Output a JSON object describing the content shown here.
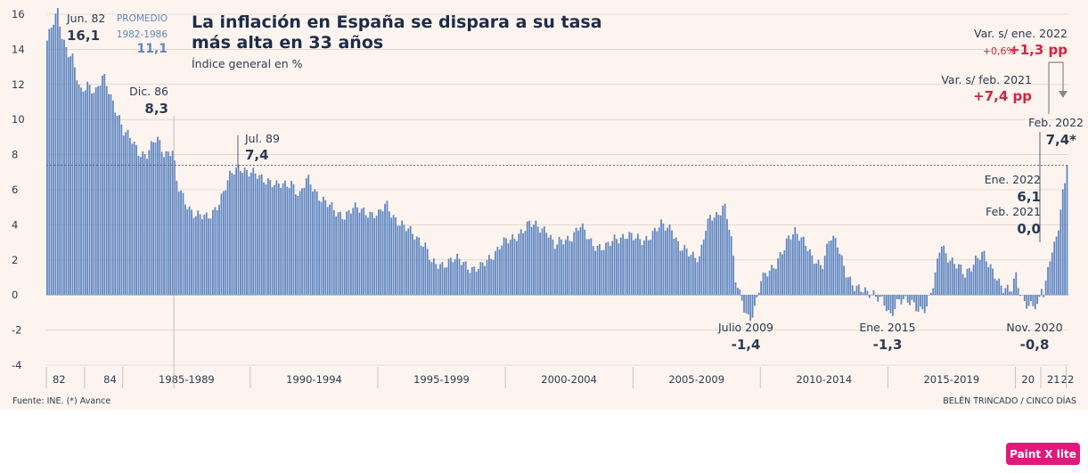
{
  "colors": {
    "background": "#fdf4ef",
    "bar": "#5f86c2",
    "bar_dark": "#3e6bb1",
    "text": "#2b3a52",
    "red": "#d8223f",
    "gridline": "#d6c9c2"
  },
  "chart_data": {
    "type": "bar",
    "title_lines": [
      "La inflación en España se dispara a su tasa",
      "más alta en 33 años"
    ],
    "subtitle": "Índice general en %",
    "ylim": [
      -4,
      16
    ],
    "yticks": [
      16,
      14,
      12,
      10,
      8,
      6,
      4,
      2,
      0,
      -2,
      -4
    ],
    "start_year": 1982,
    "end_label": "Feb. 2022",
    "period_labels": [
      "82",
      "84",
      "1985-1989",
      "1990-1994",
      "1995-1999",
      "2000-2004",
      "2005-2009",
      "2010-2014",
      "2015-2019",
      "20",
      "21",
      "22"
    ],
    "reference_line": 7.4,
    "annotations": {
      "jun82": {
        "label": "Jun. 82",
        "value": "16,1"
      },
      "promedio": {
        "label": "PROMEDIO",
        "period": "1982-1986",
        "value": "11,1"
      },
      "dic86": {
        "label": "Dic. 86",
        "value": "8,3"
      },
      "jul89": {
        "label": "Jul. 89",
        "value": "7,4"
      },
      "julio2009": {
        "label": "Julio 2009",
        "value": "-1,4"
      },
      "ene2015": {
        "label": "Ene. 2015",
        "value": "-1,3"
      },
      "nov2020": {
        "label": "Nov. 2020",
        "value": "-0,8"
      },
      "feb2021": {
        "label": "Feb. 2021",
        "value": "0,0"
      },
      "ene2022": {
        "label": "Ene. 2022",
        "value": "6,1"
      },
      "feb2022": {
        "label": "Feb. 2022",
        "value": "7,4*"
      },
      "var_ene": {
        "label": "Var. s/ ene. 2022",
        "pct": "+0,6%",
        "pp": "+1,3 pp"
      },
      "var_feb": {
        "label": "Var. s/ feb. 2021",
        "pp": "+7,4 pp"
      }
    },
    "keypoints": [
      [
        1982.0,
        14.5
      ],
      [
        1982.2,
        15.3
      ],
      [
        1982.42,
        16.1
      ],
      [
        1982.6,
        14.7
      ],
      [
        1982.8,
        14.0
      ],
      [
        1983.0,
        13.5
      ],
      [
        1983.3,
        11.4
      ],
      [
        1983.6,
        12.1
      ],
      [
        1983.9,
        11.6
      ],
      [
        1984.2,
        12.4
      ],
      [
        1984.5,
        11.3
      ],
      [
        1984.8,
        10.3
      ],
      [
        1985.0,
        9.3
      ],
      [
        1985.3,
        8.8
      ],
      [
        1985.6,
        8.2
      ],
      [
        1985.9,
        8.0
      ],
      [
        1986.3,
        8.9
      ],
      [
        1986.6,
        8.1
      ],
      [
        1986.92,
        8.3
      ],
      [
        1987.1,
        6.2
      ],
      [
        1987.4,
        5.3
      ],
      [
        1987.7,
        4.8
      ],
      [
        1988.0,
        4.5
      ],
      [
        1988.3,
        4.3
      ],
      [
        1988.6,
        5.0
      ],
      [
        1988.9,
        5.8
      ],
      [
        1989.2,
        6.8
      ],
      [
        1989.55,
        7.4
      ],
      [
        1989.9,
        7.0
      ],
      [
        1990.3,
        6.7
      ],
      [
        1990.7,
        6.6
      ],
      [
        1991.0,
        6.2
      ],
      [
        1991.3,
        6.2
      ],
      [
        1991.6,
        6.5
      ],
      [
        1991.9,
        5.6
      ],
      [
        1992.2,
        6.6
      ],
      [
        1992.5,
        6.0
      ],
      [
        1992.9,
        5.3
      ],
      [
        1993.3,
        4.7
      ],
      [
        1993.7,
        4.6
      ],
      [
        1994.0,
        4.9
      ],
      [
        1994.5,
        4.8
      ],
      [
        1995.0,
        4.5
      ],
      [
        1995.3,
        5.2
      ],
      [
        1995.7,
        4.3
      ],
      [
        1996.0,
        3.8
      ],
      [
        1996.4,
        3.5
      ],
      [
        1996.8,
        2.9
      ],
      [
        1997.1,
        1.7
      ],
      [
        1997.5,
        1.8
      ],
      [
        1997.9,
        2.0
      ],
      [
        1998.3,
        1.9
      ],
      [
        1998.7,
        1.5
      ],
      [
        1999.0,
        1.5
      ],
      [
        1999.4,
        2.2
      ],
      [
        1999.8,
        2.9
      ],
      [
        2000.2,
        3.1
      ],
      [
        2000.6,
        3.7
      ],
      [
        2000.9,
        4.0
      ],
      [
        2001.2,
        3.9
      ],
      [
        2001.6,
        3.8
      ],
      [
        2001.9,
        2.7
      ],
      [
        2002.2,
        3.1
      ],
      [
        2002.6,
        3.4
      ],
      [
        2002.9,
        3.9
      ],
      [
        2003.3,
        3.1
      ],
      [
        2003.6,
        2.8
      ],
      [
        2003.9,
        2.6
      ],
      [
        2004.3,
        3.3
      ],
      [
        2004.7,
        3.4
      ],
      [
        2005.0,
        3.2
      ],
      [
        2005.4,
        3.2
      ],
      [
        2005.8,
        3.5
      ],
      [
        2006.1,
        4.0
      ],
      [
        2006.5,
        3.9
      ],
      [
        2006.8,
        2.6
      ],
      [
        2007.2,
        2.4
      ],
      [
        2007.6,
        2.2
      ],
      [
        2007.8,
        3.6
      ],
      [
        2008.0,
        4.3
      ],
      [
        2008.3,
        4.6
      ],
      [
        2008.55,
        5.3
      ],
      [
        2008.8,
        3.5
      ],
      [
        2009.0,
        0.8
      ],
      [
        2009.3,
        -0.5
      ],
      [
        2009.55,
        -1.4
      ],
      [
        2009.8,
        -0.7
      ],
      [
        2010.0,
        0.8
      ],
      [
        2010.3,
        1.5
      ],
      [
        2010.6,
        1.8
      ],
      [
        2010.9,
        2.5
      ],
      [
        2011.1,
        3.3
      ],
      [
        2011.35,
        3.8
      ],
      [
        2011.7,
        3.0
      ],
      [
        2012.0,
        2.0
      ],
      [
        2012.4,
        1.8
      ],
      [
        2012.7,
        3.3
      ],
      [
        2013.0,
        2.8
      ],
      [
        2013.3,
        1.5
      ],
      [
        2013.7,
        0.3
      ],
      [
        2014.0,
        0.2
      ],
      [
        2014.4,
        0.2
      ],
      [
        2014.8,
        -0.5
      ],
      [
        2015.05,
        -1.3
      ],
      [
        2015.4,
        -0.1
      ],
      [
        2015.8,
        -0.5
      ],
      [
        2016.2,
        -0.8
      ],
      [
        2016.5,
        -0.6
      ],
      [
        2016.8,
        0.7
      ],
      [
        2017.05,
        3.0
      ],
      [
        2017.3,
        2.3
      ],
      [
        2017.7,
        1.6
      ],
      [
        2018.0,
        1.1
      ],
      [
        2018.4,
        2.1
      ],
      [
        2018.7,
        2.3
      ],
      [
        2018.9,
        1.7
      ],
      [
        2019.2,
        1.2
      ],
      [
        2019.5,
        0.4
      ],
      [
        2019.8,
        0.1
      ],
      [
        2020.0,
        1.1
      ],
      [
        2020.2,
        0.0
      ],
      [
        2020.5,
        -0.6
      ],
      [
        2020.88,
        -0.8
      ],
      [
        2021.0,
        0.5
      ],
      [
        2021.1,
        0.0
      ],
      [
        2021.3,
        2.2
      ],
      [
        2021.5,
        2.8
      ],
      [
        2021.7,
        4.0
      ],
      [
        2021.9,
        6.5
      ],
      [
        2022.0,
        6.1
      ],
      [
        2022.08,
        7.4
      ]
    ]
  },
  "footer": {
    "source": "Fuente: INE. (*) Avance",
    "credit": "BELÉN TRINCADO / CINCO DÍAS"
  },
  "brand": "Paint X lite"
}
